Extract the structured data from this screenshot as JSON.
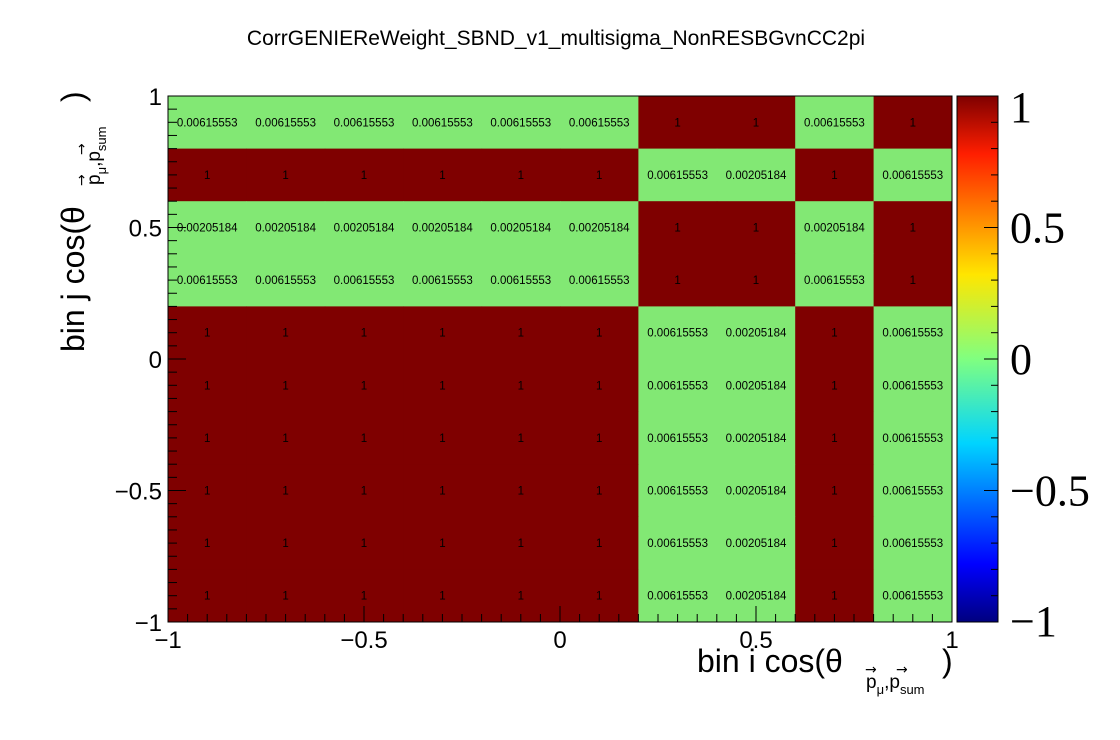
{
  "chart_data": {
    "type": "heatmap",
    "title": "CorrGENIEReWeight_SBND_v1_multisigma_NonRESBGvnCC2pi",
    "xlabel": "bin i cos(θ",
    "xlabel_sub": "p_μ,p_sum",
    "ylabel": "bin j cos(θ",
    "ylabel_sub": "p_μ,p_sum",
    "x_edges": [
      -1,
      -0.8,
      -0.6,
      -0.4,
      -0.2,
      0,
      0.2,
      0.4,
      0.6,
      0.8,
      1
    ],
    "y_edges": [
      -1,
      -0.8,
      -0.6,
      -0.4,
      -0.2,
      0,
      0.2,
      0.4,
      0.6,
      0.8,
      1
    ],
    "xlim": [
      -1,
      1
    ],
    "ylim": [
      -1,
      1
    ],
    "x_ticks": [
      {
        "value": -1,
        "label": "−1"
      },
      {
        "value": -0.5,
        "label": "−0.5"
      },
      {
        "value": 0,
        "label": "0"
      },
      {
        "value": 0.5,
        "label": "0.5"
      },
      {
        "value": 1,
        "label": "1"
      }
    ],
    "y_ticks": [
      {
        "value": -1,
        "label": "−1"
      },
      {
        "value": -0.5,
        "label": "−0.5"
      },
      {
        "value": 0,
        "label": "0"
      },
      {
        "value": 0.5,
        "label": "0.5"
      },
      {
        "value": 1,
        "label": "1"
      }
    ],
    "rows_top_to_bottom": [
      [
        "0.00615553",
        "0.00615553",
        "0.00615553",
        "0.00615553",
        "0.00615553",
        "0.00615553",
        "1",
        "1",
        "0.00615553",
        "1"
      ],
      [
        "1",
        "1",
        "1",
        "1",
        "1",
        "1",
        "0.00615553",
        "0.00205184",
        "1",
        "0.00615553"
      ],
      [
        "0.00205184",
        "0.00205184",
        "0.00205184",
        "0.00205184",
        "0.00205184",
        "0.00205184",
        "1",
        "1",
        "0.00205184",
        "1"
      ],
      [
        "0.00615553",
        "0.00615553",
        "0.00615553",
        "0.00615553",
        "0.00615553",
        "0.00615553",
        "1",
        "1",
        "0.00615553",
        "1"
      ],
      [
        "1",
        "1",
        "1",
        "1",
        "1",
        "1",
        "0.00615553",
        "0.00205184",
        "1",
        "0.00615553"
      ],
      [
        "1",
        "1",
        "1",
        "1",
        "1",
        "1",
        "0.00615553",
        "0.00205184",
        "1",
        "0.00615553"
      ],
      [
        "1",
        "1",
        "1",
        "1",
        "1",
        "1",
        "0.00615553",
        "0.00205184",
        "1",
        "0.00615553"
      ],
      [
        "1",
        "1",
        "1",
        "1",
        "1",
        "1",
        "0.00615553",
        "0.00205184",
        "1",
        "0.00615553"
      ],
      [
        "1",
        "1",
        "1",
        "1",
        "1",
        "1",
        "0.00615553",
        "0.00205184",
        "1",
        "0.00615553"
      ],
      [
        "1",
        "1",
        "1",
        "1",
        "1",
        "1",
        "0.00615553",
        "0.00205184",
        "1",
        "0.00615553"
      ]
    ],
    "zlim": [
      -1,
      1
    ],
    "colorbar_ticks": [
      {
        "value": 1,
        "label": "1"
      },
      {
        "value": 0.5,
        "label": "0.5"
      },
      {
        "value": 0,
        "label": "0"
      },
      {
        "value": -0.5,
        "label": "−0.5"
      },
      {
        "value": -1,
        "label": "−1"
      }
    ],
    "colors": {
      "high": "#7f0000",
      "zero": "#82e874"
    }
  }
}
